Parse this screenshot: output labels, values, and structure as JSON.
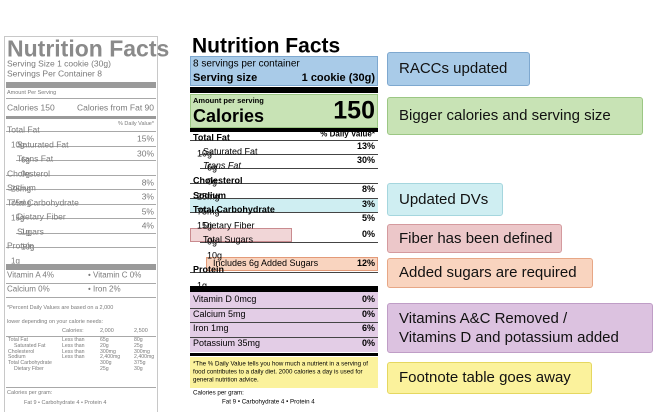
{
  "old_label": {
    "title": "Nutrition Facts",
    "serving_size": "Serving Size 1 cookie (30g)",
    "servings": "Servings Per Container 8",
    "amount_per_serving": "Amount Per Serving",
    "calories": "Calories 150",
    "calories_from_fat": "Calories from Fat 90",
    "dv_header": "% Daily Value*",
    "rows": [
      {
        "name": "Total Fat",
        "amount": "10g",
        "dv": "15%"
      },
      {
        "name": "Saturated Fat",
        "amount": "6g",
        "dv": "30%"
      },
      {
        "name": "Trans Fat",
        "amount": "0g"
      },
      {
        "name": "Cholesterol",
        "amount": "25mg",
        "dv": "8%"
      },
      {
        "name": "Sodium",
        "amount": "75mg",
        "dv": "3%"
      },
      {
        "name": "Total Carbohydrate",
        "amount": "15g",
        "dv": "5%"
      },
      {
        "name": "Dietary Fiber",
        "amount": "1g",
        "dv": "4%"
      },
      {
        "name": "Sugars",
        "amount": "10g"
      },
      {
        "name": "Protein",
        "amount": "1g"
      }
    ],
    "vitamins": [
      [
        "Vitamin A 4%",
        "• Vitamin C 0%"
      ],
      [
        "Calcium 0%",
        "• Iron 2%"
      ]
    ],
    "footnote": [
      "*Percent Daily Values are based on a 2,000",
      "lower depending on your calorie needs:"
    ],
    "table_header": [
      "Calories:",
      "2,000",
      "2,500"
    ],
    "table_rows": [
      [
        "Total Fat",
        "Less than",
        "65g",
        "80g"
      ],
      [
        "Saturated Fat",
        "Less than",
        "20g",
        "25g"
      ],
      [
        "Cholesterol",
        "Less than",
        "300mg",
        "300mg"
      ],
      [
        "Sodium",
        "Less than",
        "2,400mg",
        "2,400mg"
      ],
      [
        "Total Carbohydrate",
        "300g",
        "375g"
      ],
      [
        "Dietary Fiber",
        "25g",
        "30g"
      ]
    ],
    "calories_per_gram": "Calories per gram:",
    "per_gram_values": "Fat 9  •  Carbohydrate 4  •  Protein 4"
  },
  "new_label": {
    "title": "Nutrition Facts",
    "servings": "8 servings per container",
    "serving_size_label": "Serving size",
    "serving_size_value": "1 cookie (30g)",
    "amount_per_serving": "Amount per serving",
    "calories_label": "Calories",
    "calories_value": "150",
    "dv_header": "% Daily Value*",
    "rows": [
      {
        "name": "Total Fat",
        "amount": "10g",
        "dv": "13%"
      },
      {
        "name": "Saturated Fat",
        "amount": "6g",
        "dv": "30%"
      },
      {
        "name": "Trans Fat",
        "amount": "0g"
      },
      {
        "name": "Cholesterol",
        "amount": "25mg",
        "dv": "8%"
      },
      {
        "name": "Sodium",
        "amount": "75mg",
        "dv": "3%"
      },
      {
        "name": "Total Carbohydrate",
        "amount": "15g",
        "dv": "5%"
      },
      {
        "name": "Dietary Fiber",
        "amount": "0g",
        "dv": "0%"
      },
      {
        "name": "Total Sugars",
        "amount": "10g"
      },
      {
        "name": "Includes 6g Added Sugars",
        "dv": "12%"
      },
      {
        "name": "Protein",
        "amount": "1g"
      }
    ],
    "vitamins": [
      {
        "name": "Vitamin D 0mcg",
        "dv": "0%"
      },
      {
        "name": "Calcium 5mg",
        "dv": "0%"
      },
      {
        "name": "Iron 1mg",
        "dv": "6%"
      },
      {
        "name": "Potassium 35mg",
        "dv": "0%"
      }
    ],
    "footnote": "*The % Daily Value tells you how much a nutrient in a serving of food contributes to a daily diet. 2000 calories a day is used for general nutrition advice.",
    "calories_per_gram": "Calories per gram:",
    "per_gram_values": "Fat 9  •  Carbohydrate 4  •  Protein 4"
  },
  "callouts": [
    "RACCs updated",
    "Bigger calories and serving size",
    "Updated DVs",
    "Fiber has been defined",
    "Added sugars are required",
    [
      "Vitamins A&C Removed /",
      "Vitamins D and potassium added"
    ],
    "Footnote table goes away"
  ]
}
